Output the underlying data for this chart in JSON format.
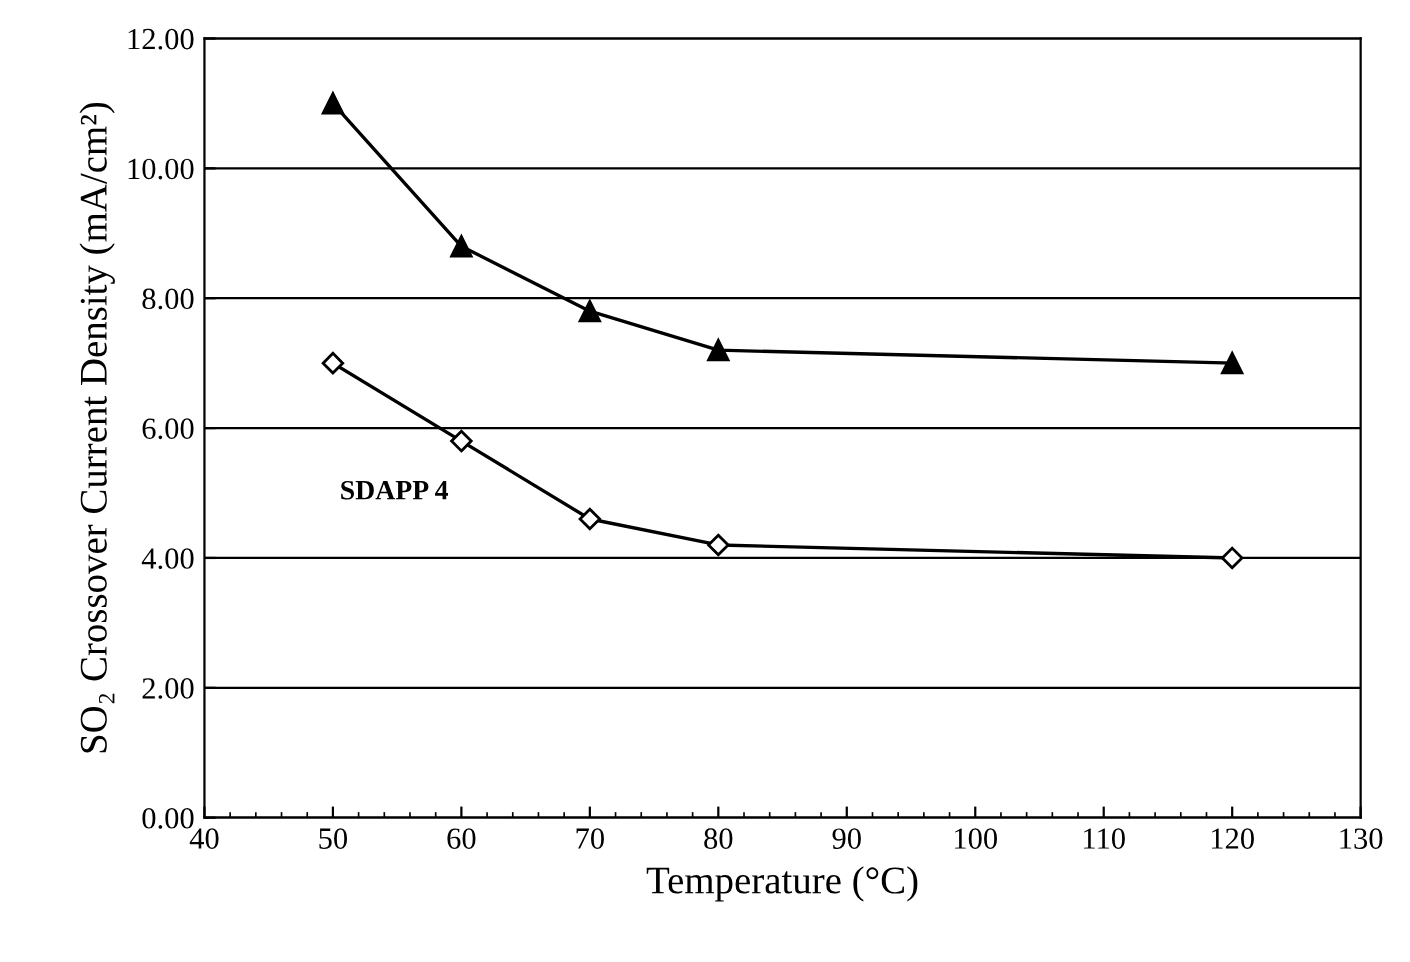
{
  "chart_data": {
    "type": "line",
    "xlabel": "Temperature (°C)",
    "ylabel": "SO₂ Crossover Current Density (mA/cm²)",
    "series": [
      {
        "color": "#000000",
        "marker": "triangle",
        "x": [
          50,
          60,
          70,
          80,
          120
        ],
        "values": [
          11.0,
          8.8,
          7.8,
          7.2,
          7.0
        ]
      },
      {
        "name": "SDAPP 4",
        "color": "#000000",
        "marker": "diamond",
        "x": [
          50,
          60,
          70,
          80,
          120
        ],
        "values": [
          7.0,
          5.8,
          4.6,
          4.2,
          4.0
        ]
      }
    ],
    "xlim": [
      40,
      130
    ],
    "xticks": [
      40,
      50,
      60,
      70,
      80,
      90,
      100,
      110,
      120,
      130
    ],
    "ylim": [
      0,
      12
    ],
    "yticks": [
      {
        "value": 0,
        "label": "0.00"
      },
      {
        "value": 2,
        "label": "2.00"
      },
      {
        "value": 4,
        "label": "4.00"
      },
      {
        "value": 6,
        "label": "6.00"
      },
      {
        "value": 8,
        "label": "8.00"
      },
      {
        "value": 10,
        "label": "10.00"
      },
      {
        "value": 12,
        "label": "12.00"
      }
    ],
    "grid": "y",
    "line_style": "solid"
  }
}
